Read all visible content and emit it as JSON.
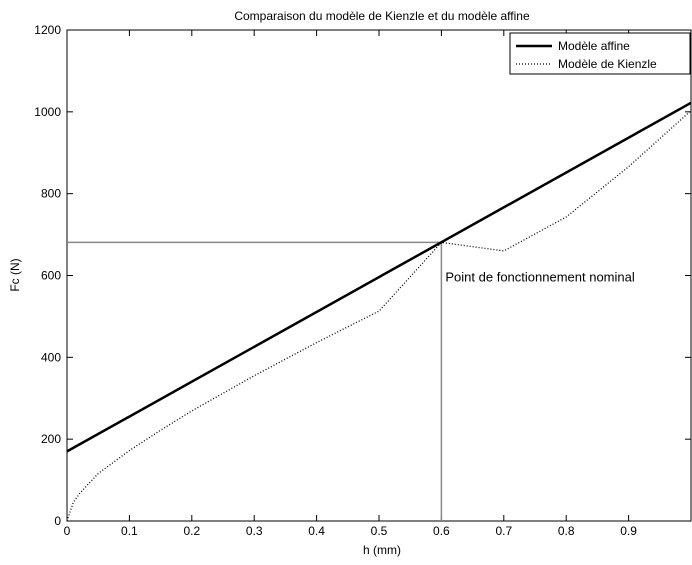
{
  "chart_data": {
    "type": "line",
    "title": "Comparaison du modèle de Kienzle et du modèle affine",
    "xlabel": "h (mm)",
    "ylabel": "Fc (N)",
    "xlim": [
      0,
      1
    ],
    "ylim": [
      0,
      1200
    ],
    "xticks": [
      0,
      0.1,
      0.2,
      0.3,
      0.4,
      0.5,
      0.6,
      0.7,
      0.8,
      0.9
    ],
    "xtick_labels": [
      "0",
      "0.1",
      "0.2",
      "0.3",
      "0.4",
      "0.5",
      "0.6",
      "0.7",
      "0.8",
      "0.9"
    ],
    "yticks": [
      0,
      200,
      400,
      600,
      800,
      1000,
      1200
    ],
    "ytick_labels": [
      "0",
      "200",
      "400",
      "600",
      "800",
      "1000",
      "1200"
    ],
    "grid": false,
    "legend_position": "top-right",
    "series": [
      {
        "name": "Modèle affine",
        "style": "solid",
        "color": "#000000",
        "x": [
          0,
          1
        ],
        "y": [
          170,
          1022
        ]
      },
      {
        "name": "Modèle de Kienzle",
        "style": "dotted",
        "color": "#000000",
        "x": [
          0,
          0.01,
          0.02,
          0.05,
          0.1,
          0.15,
          0.2,
          0.3,
          0.4,
          0.5,
          0.6,
          0.7,
          0.8,
          0.9,
          1.0
        ],
        "y": [
          0,
          45,
          67,
          116,
          172,
          222,
          269,
          355,
          436,
          513,
          681,
          660,
          743,
          866,
          1003
        ]
      }
    ],
    "reference_point": {
      "x": 0.6,
      "y": 681
    },
    "annotation": {
      "text": "Point de fonctionnement nominal",
      "x": 0.6,
      "y": 600
    }
  }
}
